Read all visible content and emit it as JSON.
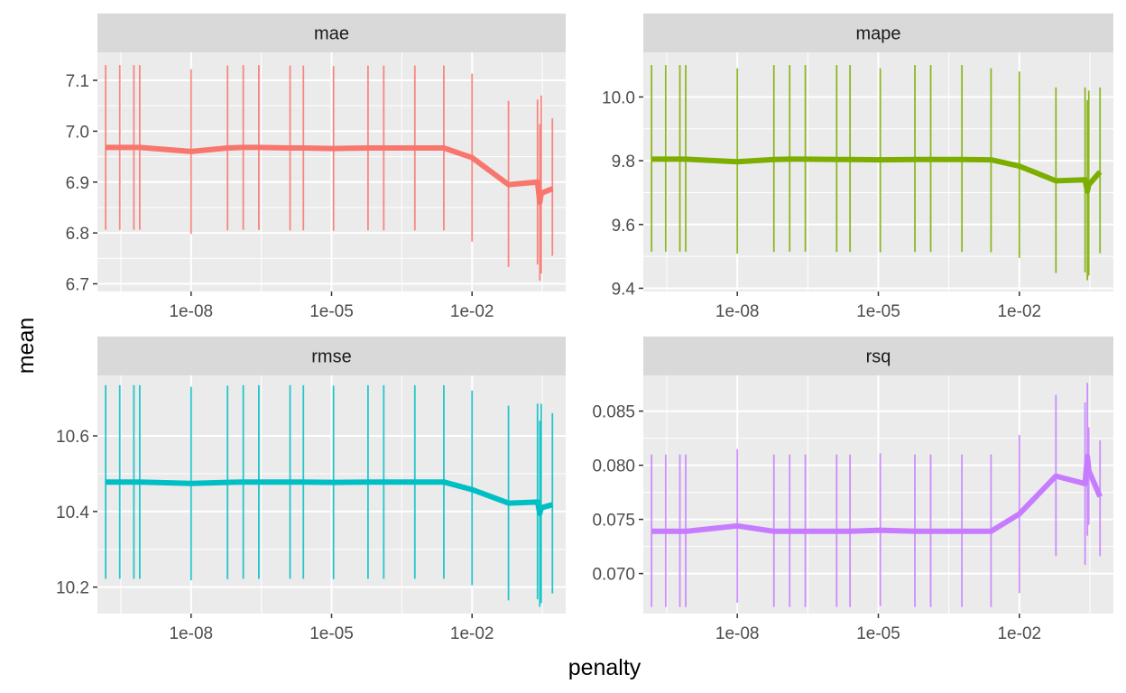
{
  "chart_data": {
    "type": "line",
    "facet_layout": "2x2 grid, free y scales, shared log10 x axis",
    "xlabel": "penalty",
    "ylabel": "mean",
    "x_scale": "log10",
    "xlim": [
      1e-10,
      1
    ],
    "x_ticks": [
      1e-08,
      1e-05,
      0.01
    ],
    "x_tick_labels": [
      "1e-08",
      "1e-05",
      "1e-02"
    ],
    "grid": true,
    "legend": "none",
    "panels": [
      {
        "strip": "mae",
        "color": "#F8766D",
        "ylim": [
          6.685,
          7.155
        ],
        "y_ticks": [
          6.7,
          6.8,
          6.9,
          7.0,
          7.1
        ],
        "y_tick_labels": [
          "6.7",
          "6.8",
          "6.9",
          "7.0",
          "7.1"
        ],
        "points": [
          {
            "x": 1.5e-10,
            "mean": 6.968,
            "lo": 6.806,
            "hi": 7.13
          },
          {
            "x": 3e-10,
            "mean": 6.968,
            "lo": 6.806,
            "hi": 7.13
          },
          {
            "x": 6e-10,
            "mean": 6.968,
            "lo": 6.806,
            "hi": 7.13
          },
          {
            "x": 8e-10,
            "mean": 6.968,
            "lo": 6.806,
            "hi": 7.13
          },
          {
            "x": 1e-08,
            "mean": 6.96,
            "lo": 6.798,
            "hi": 7.122
          },
          {
            "x": 6e-08,
            "mean": 6.967,
            "lo": 6.805,
            "hi": 7.129
          },
          {
            "x": 1.3e-07,
            "mean": 6.968,
            "lo": 6.806,
            "hi": 7.13
          },
          {
            "x": 2.8e-07,
            "mean": 6.968,
            "lo": 6.806,
            "hi": 7.13
          },
          {
            "x": 1.3e-06,
            "mean": 6.967,
            "lo": 6.805,
            "hi": 7.129
          },
          {
            "x": 2.5e-06,
            "mean": 6.967,
            "lo": 6.805,
            "hi": 7.129
          },
          {
            "x": 1.1e-05,
            "mean": 6.966,
            "lo": 6.804,
            "hi": 7.128
          },
          {
            "x": 6e-05,
            "mean": 6.967,
            "lo": 6.805,
            "hi": 7.129
          },
          {
            "x": 0.00013,
            "mean": 6.967,
            "lo": 6.805,
            "hi": 7.129
          },
          {
            "x": 0.0006,
            "mean": 6.967,
            "lo": 6.805,
            "hi": 7.129
          },
          {
            "x": 0.0025,
            "mean": 6.967,
            "lo": 6.805,
            "hi": 7.129
          },
          {
            "x": 0.01,
            "mean": 6.948,
            "lo": 6.783,
            "hi": 7.113
          },
          {
            "x": 0.06,
            "mean": 6.895,
            "lo": 6.733,
            "hi": 7.06
          },
          {
            "x": 0.25,
            "mean": 6.9,
            "lo": 6.738,
            "hi": 7.062
          },
          {
            "x": 0.28,
            "mean": 6.86,
            "lo": 6.706,
            "hi": 7.014
          },
          {
            "x": 0.3,
            "mean": 6.878,
            "lo": 6.72,
            "hi": 7.07
          },
          {
            "x": 0.52,
            "mean": 6.887,
            "lo": 6.755,
            "hi": 7.025
          }
        ]
      },
      {
        "strip": "mape",
        "color": "#7CAE00",
        "ylim": [
          9.39,
          10.14
        ],
        "y_ticks": [
          9.4,
          9.6,
          9.8,
          10.0
        ],
        "y_tick_labels": [
          "9.4",
          "9.6",
          "9.8",
          "10.0"
        ],
        "points": [
          {
            "x": 1.5e-10,
            "mean": 9.805,
            "lo": 9.515,
            "hi": 10.1
          },
          {
            "x": 3e-10,
            "mean": 9.805,
            "lo": 9.515,
            "hi": 10.1
          },
          {
            "x": 6e-10,
            "mean": 9.805,
            "lo": 9.515,
            "hi": 10.1
          },
          {
            "x": 8e-10,
            "mean": 9.805,
            "lo": 9.515,
            "hi": 10.1
          },
          {
            "x": 1e-08,
            "mean": 9.797,
            "lo": 9.508,
            "hi": 10.09
          },
          {
            "x": 6e-08,
            "mean": 9.804,
            "lo": 9.514,
            "hi": 10.1
          },
          {
            "x": 1.3e-07,
            "mean": 9.805,
            "lo": 9.515,
            "hi": 10.1
          },
          {
            "x": 2.8e-07,
            "mean": 9.805,
            "lo": 9.515,
            "hi": 10.1
          },
          {
            "x": 1.3e-06,
            "mean": 9.804,
            "lo": 9.514,
            "hi": 10.1
          },
          {
            "x": 2.5e-06,
            "mean": 9.804,
            "lo": 9.514,
            "hi": 10.1
          },
          {
            "x": 1.1e-05,
            "mean": 9.803,
            "lo": 9.513,
            "hi": 10.09
          },
          {
            "x": 6e-05,
            "mean": 9.804,
            "lo": 9.514,
            "hi": 10.1
          },
          {
            "x": 0.00013,
            "mean": 9.804,
            "lo": 9.514,
            "hi": 10.1
          },
          {
            "x": 0.0006,
            "mean": 9.804,
            "lo": 9.514,
            "hi": 10.1
          },
          {
            "x": 0.0025,
            "mean": 9.803,
            "lo": 9.513,
            "hi": 10.09
          },
          {
            "x": 0.01,
            "mean": 9.783,
            "lo": 9.495,
            "hi": 10.08
          },
          {
            "x": 0.06,
            "mean": 9.737,
            "lo": 9.448,
            "hi": 10.03
          },
          {
            "x": 0.25,
            "mean": 9.74,
            "lo": 9.45,
            "hi": 10.03
          },
          {
            "x": 0.28,
            "mean": 9.705,
            "lo": 9.425,
            "hi": 9.99
          },
          {
            "x": 0.3,
            "mean": 9.725,
            "lo": 9.44,
            "hi": 10.02
          },
          {
            "x": 0.52,
            "mean": 9.765,
            "lo": 9.51,
            "hi": 10.03
          }
        ]
      },
      {
        "strip": "rmse",
        "color": "#00BFC4",
        "ylim": [
          10.13,
          10.76
        ],
        "y_ticks": [
          10.2,
          10.4,
          10.6
        ],
        "y_tick_labels": [
          "10.2",
          "10.4",
          "10.6"
        ],
        "points": [
          {
            "x": 1.5e-10,
            "mean": 10.478,
            "lo": 10.222,
            "hi": 10.734
          },
          {
            "x": 3e-10,
            "mean": 10.478,
            "lo": 10.222,
            "hi": 10.734
          },
          {
            "x": 6e-10,
            "mean": 10.478,
            "lo": 10.222,
            "hi": 10.734
          },
          {
            "x": 8e-10,
            "mean": 10.478,
            "lo": 10.222,
            "hi": 10.734
          },
          {
            "x": 1e-08,
            "mean": 10.474,
            "lo": 10.218,
            "hi": 10.73
          },
          {
            "x": 6e-08,
            "mean": 10.477,
            "lo": 10.221,
            "hi": 10.733
          },
          {
            "x": 1.3e-07,
            "mean": 10.478,
            "lo": 10.222,
            "hi": 10.734
          },
          {
            "x": 2.8e-07,
            "mean": 10.478,
            "lo": 10.222,
            "hi": 10.734
          },
          {
            "x": 1.3e-06,
            "mean": 10.478,
            "lo": 10.222,
            "hi": 10.734
          },
          {
            "x": 2.5e-06,
            "mean": 10.478,
            "lo": 10.222,
            "hi": 10.734
          },
          {
            "x": 1.1e-05,
            "mean": 10.477,
            "lo": 10.221,
            "hi": 10.733
          },
          {
            "x": 6e-05,
            "mean": 10.478,
            "lo": 10.222,
            "hi": 10.734
          },
          {
            "x": 0.00013,
            "mean": 10.478,
            "lo": 10.222,
            "hi": 10.734
          },
          {
            "x": 0.0006,
            "mean": 10.478,
            "lo": 10.222,
            "hi": 10.734
          },
          {
            "x": 0.0025,
            "mean": 10.478,
            "lo": 10.222,
            "hi": 10.734
          },
          {
            "x": 0.01,
            "mean": 10.458,
            "lo": 10.205,
            "hi": 10.72
          },
          {
            "x": 0.06,
            "mean": 10.422,
            "lo": 10.165,
            "hi": 10.68
          },
          {
            "x": 0.25,
            "mean": 10.425,
            "lo": 10.168,
            "hi": 10.685
          },
          {
            "x": 0.28,
            "mean": 10.395,
            "lo": 10.148,
            "hi": 10.64
          },
          {
            "x": 0.3,
            "mean": 10.41,
            "lo": 10.158,
            "hi": 10.685
          },
          {
            "x": 0.52,
            "mean": 10.418,
            "lo": 10.183,
            "hi": 10.66
          }
        ]
      },
      {
        "strip": "rsq",
        "color": "#C77CFF",
        "ylim": [
          0.0663,
          0.0883
        ],
        "y_ticks": [
          0.07,
          0.075,
          0.08,
          0.085
        ],
        "y_tick_labels": [
          "0.070",
          "0.075",
          "0.080",
          "0.085"
        ],
        "points": [
          {
            "x": 1.5e-10,
            "mean": 0.0739,
            "lo": 0.0669,
            "hi": 0.081
          },
          {
            "x": 3e-10,
            "mean": 0.0739,
            "lo": 0.0669,
            "hi": 0.081
          },
          {
            "x": 6e-10,
            "mean": 0.0739,
            "lo": 0.0669,
            "hi": 0.081
          },
          {
            "x": 8e-10,
            "mean": 0.0739,
            "lo": 0.0669,
            "hi": 0.081
          },
          {
            "x": 1e-08,
            "mean": 0.0744,
            "lo": 0.0673,
            "hi": 0.0815
          },
          {
            "x": 6e-08,
            "mean": 0.0739,
            "lo": 0.0669,
            "hi": 0.081
          },
          {
            "x": 1.3e-07,
            "mean": 0.0739,
            "lo": 0.0669,
            "hi": 0.081
          },
          {
            "x": 2.8e-07,
            "mean": 0.0739,
            "lo": 0.0669,
            "hi": 0.081
          },
          {
            "x": 1.3e-06,
            "mean": 0.0739,
            "lo": 0.0669,
            "hi": 0.081
          },
          {
            "x": 2.5e-06,
            "mean": 0.0739,
            "lo": 0.0669,
            "hi": 0.081
          },
          {
            "x": 1.1e-05,
            "mean": 0.074,
            "lo": 0.067,
            "hi": 0.0811
          },
          {
            "x": 6e-05,
            "mean": 0.0739,
            "lo": 0.0669,
            "hi": 0.081
          },
          {
            "x": 0.00013,
            "mean": 0.0739,
            "lo": 0.0669,
            "hi": 0.081
          },
          {
            "x": 0.0006,
            "mean": 0.0739,
            "lo": 0.0669,
            "hi": 0.081
          },
          {
            "x": 0.0025,
            "mean": 0.0739,
            "lo": 0.0669,
            "hi": 0.081
          },
          {
            "x": 0.01,
            "mean": 0.0755,
            "lo": 0.0682,
            "hi": 0.0828
          },
          {
            "x": 0.06,
            "mean": 0.079,
            "lo": 0.0716,
            "hi": 0.0865
          },
          {
            "x": 0.25,
            "mean": 0.0783,
            "lo": 0.0708,
            "hi": 0.0858
          },
          {
            "x": 0.28,
            "mean": 0.0808,
            "lo": 0.0735,
            "hi": 0.0876
          },
          {
            "x": 0.3,
            "mean": 0.0795,
            "lo": 0.0745,
            "hi": 0.0835
          },
          {
            "x": 0.52,
            "mean": 0.0771,
            "lo": 0.0716,
            "hi": 0.0823
          }
        ]
      }
    ]
  }
}
